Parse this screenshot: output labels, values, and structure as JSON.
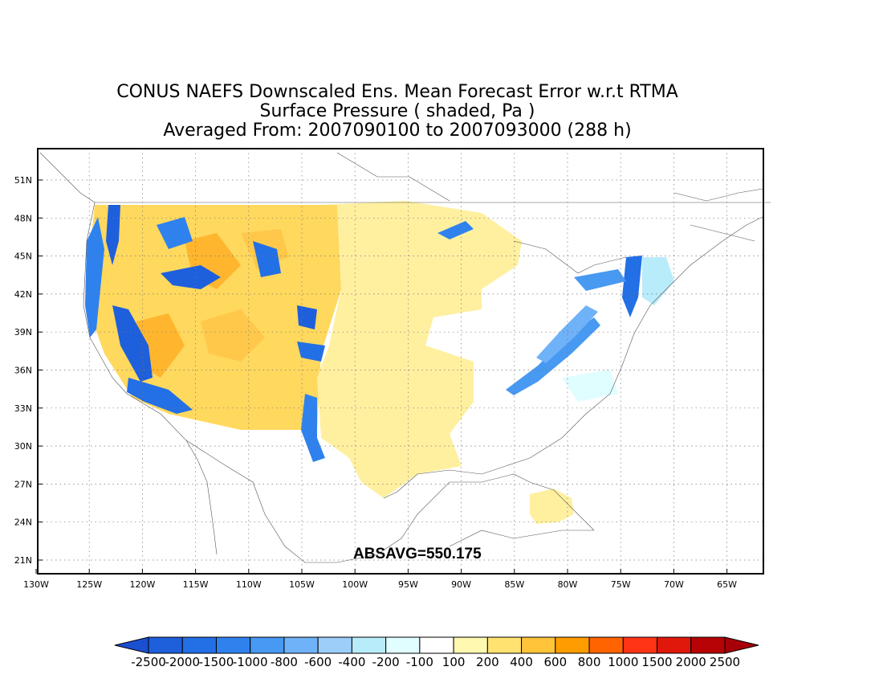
{
  "title": {
    "line1": "CONUS NAEFS Downscaled Ens. Mean Forecast Error w.r.t RTMA",
    "line2": "Surface Pressure ( shaded, Pa )",
    "line3": "Averaged From: 2007090100 to 2007093000 (288 h)"
  },
  "stat_label": "ABSAVG=550.175",
  "latitudes": [
    "51N",
    "48N",
    "45N",
    "42N",
    "39N",
    "36N",
    "33N",
    "30N",
    "27N",
    "24N",
    "21N"
  ],
  "longitudes": [
    "130W",
    "125W",
    "120W",
    "115W",
    "110W",
    "105W",
    "100W",
    "95W",
    "90W",
    "85W",
    "80W",
    "75W",
    "70W",
    "65W"
  ],
  "colorbar": {
    "labels": [
      "-2500",
      "-2000",
      "-1500",
      "-1000",
      "-800",
      "-600",
      "-400",
      "-200",
      "-100",
      "100",
      "200",
      "400",
      "600",
      "800",
      "1000",
      "1500",
      "2000",
      "2500"
    ],
    "colors": [
      "#1e5fdc",
      "#236fe6",
      "#2f82ee",
      "#4799f2",
      "#6fb2f8",
      "#9ccef9",
      "#b8ecfa",
      "#e0fdff",
      "#ffffff",
      "#fff8b0",
      "#ffe270",
      "#ffc43a",
      "#ff9d00",
      "#ff6400",
      "#ff3414",
      "#e0180c",
      "#b80306"
    ],
    "low_end_color": "#1a4fd0",
    "high_end_color": "#a80008"
  }
}
